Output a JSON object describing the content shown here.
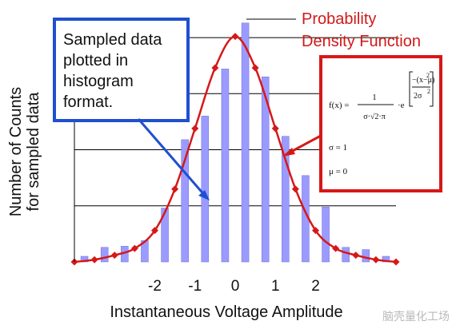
{
  "chart_data": {
    "type": "bar",
    "x": [
      -3.75,
      -3.25,
      -2.75,
      -2.25,
      -1.75,
      -1.25,
      -0.75,
      -0.25,
      0.25,
      0.75,
      1.25,
      1.75,
      2.25,
      2.75,
      3.25,
      3.75
    ],
    "values": [
      0.5,
      1.3,
      1.4,
      1.9,
      4.8,
      10.9,
      13.0,
      17.2,
      21.3,
      16.5,
      11.2,
      7.7,
      4.9,
      1.3,
      1.1,
      0.5
    ],
    "x_ticks": [
      "-2",
      "-1",
      "0",
      "1",
      "2"
    ],
    "x_tick_values": [
      -2,
      -1,
      0,
      1,
      2
    ],
    "xlabel": "Instantaneous Voltage Amplitude",
    "ylabel": [
      "Number of Counts",
      "for sampled data"
    ],
    "xlim": [
      -4,
      4
    ],
    "ylim": [
      0,
      21.5
    ],
    "grid": "horizontal",
    "gridlines": [
      5,
      10,
      15,
      20
    ],
    "curve_points": {
      "x": [
        -4,
        -3.5,
        -3,
        -2.5,
        -2,
        -1.5,
        -1,
        -0.5,
        0,
        0.5,
        1,
        1.5,
        2,
        2.5,
        3,
        3.5,
        4
      ],
      "y": [
        0.0,
        0.2,
        0.6,
        1.2,
        2.8,
        6.5,
        11.9,
        17.3,
        20.1,
        17.3,
        11.9,
        6.5,
        2.8,
        1.2,
        0.6,
        0.2,
        0.0
      ]
    },
    "colors": {
      "bars": "#9b9bff",
      "curve": "#d61818",
      "grid": "#000000",
      "callout_sample": "#1f4fd1",
      "callout_pdf": "#d61818"
    }
  },
  "annotations": {
    "histogram_callout": [
      "Sampled data",
      "plotted in",
      "histogram",
      "format."
    ],
    "pdf_label": [
      "Probability",
      "Density Function"
    ],
    "formula": {
      "lhs": "f(x) =",
      "num": "1",
      "den": "σ·√2·π",
      "base": "·e",
      "exp_num": "−(x−μ)",
      "exp_num_pow": "2",
      "exp_den": "2σ",
      "exp_den_pow": "2",
      "sigma": "σ = 1",
      "mu": "μ = 0"
    },
    "watermark": "脑壳量化工场"
  }
}
